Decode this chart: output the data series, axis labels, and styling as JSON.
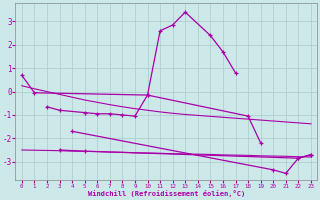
{
  "background_color": "#cde8e8",
  "grid_color": "#aacccc",
  "line_color": "#aa00aa",
  "xlabel": "Windchill (Refroidissement éolien,°C)",
  "x": [
    0,
    1,
    2,
    3,
    4,
    5,
    6,
    7,
    8,
    9,
    10,
    11,
    12,
    13,
    14,
    15,
    16,
    17,
    18,
    19,
    20,
    21,
    22,
    23
  ],
  "series_A": [
    0.7,
    -0.05,
    null,
    null,
    null,
    null,
    null,
    null,
    null,
    null,
    -0.15,
    2.6,
    2.85,
    3.4,
    null,
    2.4,
    1.7,
    0.8,
    null,
    null,
    null,
    null,
    null,
    null
  ],
  "series_B": [
    null,
    null,
    -0.65,
    -0.8,
    null,
    -0.9,
    -0.95,
    -0.95,
    -1.0,
    -1.05,
    -0.15,
    null,
    null,
    null,
    null,
    null,
    null,
    null,
    -1.05,
    -2.2,
    null,
    null,
    null,
    null
  ],
  "series_C": [
    null,
    null,
    null,
    -2.5,
    null,
    -2.55,
    null,
    null,
    null,
    null,
    null,
    null,
    null,
    null,
    null,
    null,
    null,
    null,
    null,
    null,
    null,
    null,
    -2.85,
    -2.7
  ],
  "series_D": [
    null,
    null,
    null,
    null,
    -1.7,
    null,
    null,
    null,
    null,
    null,
    null,
    null,
    null,
    null,
    null,
    null,
    null,
    null,
    null,
    null,
    -3.35,
    -3.5,
    -2.85,
    -2.7
  ],
  "trend_upper": [
    0.25,
    0.12,
    0.0,
    -0.12,
    -0.24,
    -0.36,
    -0.46,
    -0.56,
    -0.65,
    -0.73,
    -0.8,
    -0.87,
    -0.93,
    -0.98,
    -1.02,
    -1.06,
    -1.1,
    -1.14,
    -1.18,
    -1.22,
    -1.26,
    -1.3,
    -1.34,
    -1.38
  ],
  "trend_lower": [
    -2.5,
    -2.51,
    -2.52,
    -2.53,
    -2.55,
    -2.56,
    -2.57,
    -2.59,
    -2.6,
    -2.62,
    -2.63,
    -2.64,
    -2.66,
    -2.67,
    -2.68,
    -2.69,
    -2.71,
    -2.72,
    -2.73,
    -2.75,
    -2.76,
    -2.77,
    -2.79,
    -2.8
  ],
  "ylim": [
    -3.8,
    3.8
  ],
  "yticks": [
    -3,
    -2,
    -1,
    0,
    1,
    2,
    3
  ],
  "xticks": [
    0,
    1,
    2,
    3,
    4,
    5,
    6,
    7,
    8,
    9,
    10,
    11,
    12,
    13,
    14,
    15,
    16,
    17,
    18,
    19,
    20,
    21,
    22,
    23
  ]
}
